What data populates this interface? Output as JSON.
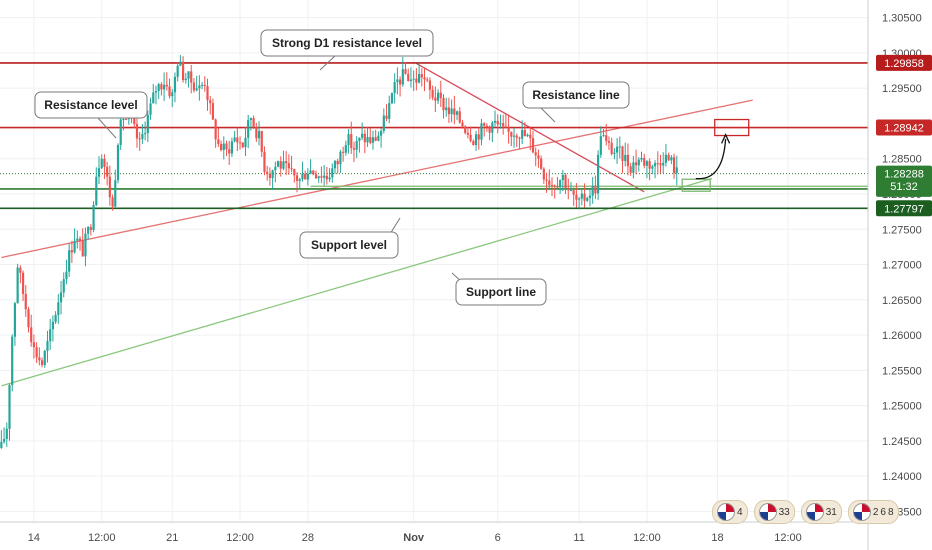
{
  "chart_data": {
    "type": "candlestick",
    "ylim": [
      1.2335,
      1.3075
    ],
    "y_ticks": [
      "1.30500",
      "1.30000",
      "1.29500",
      "1.28500",
      "1.28000",
      "1.27500",
      "1.27000",
      "1.26500",
      "1.26000",
      "1.25500",
      "1.25000",
      "1.24500",
      "1.24000",
      "1.23500"
    ],
    "y_tick_values": [
      1.305,
      1.3,
      1.295,
      1.285,
      1.28,
      1.275,
      1.27,
      1.265,
      1.26,
      1.255,
      1.25,
      1.245,
      1.24,
      1.235
    ],
    "x_ticks": [
      {
        "label": "14",
        "bar": 12,
        "bold": false
      },
      {
        "label": "12:00",
        "bar": 37,
        "bold": false
      },
      {
        "label": "21",
        "bar": 63,
        "bold": false
      },
      {
        "label": "12:00",
        "bar": 88,
        "bold": false
      },
      {
        "label": "28",
        "bar": 113,
        "bold": false
      },
      {
        "label": "Nov",
        "bar": 152,
        "bold": true
      },
      {
        "label": "6",
        "bar": 183,
        "bold": false
      },
      {
        "label": "11",
        "bar": 213,
        "bold": false
      },
      {
        "label": "12:00",
        "bar": 238,
        "bold": false
      },
      {
        "label": "18",
        "bar": 264,
        "bold": false
      },
      {
        "label": "12:00",
        "bar": 290,
        "bold": false
      }
    ],
    "bars_total": 320,
    "close_path": [
      [
        0,
        1.244
      ],
      [
        2,
        1.247
      ],
      [
        4,
        1.26
      ],
      [
        6,
        1.27
      ],
      [
        9,
        1.264
      ],
      [
        12,
        1.258
      ],
      [
        15,
        1.256
      ],
      [
        18,
        1.26
      ],
      [
        21,
        1.265
      ],
      [
        24,
        1.27
      ],
      [
        27,
        1.274
      ],
      [
        30,
        1.272
      ],
      [
        33,
        1.276
      ],
      [
        35,
        1.283
      ],
      [
        37,
        1.286
      ],
      [
        39,
        1.282
      ],
      [
        41,
        1.278
      ],
      [
        43,
        1.288
      ],
      [
        45,
        1.291
      ],
      [
        48,
        1.29
      ],
      [
        51,
        1.287
      ],
      [
        54,
        1.291
      ],
      [
        57,
        1.295
      ],
      [
        60,
        1.296
      ],
      [
        63,
        1.294
      ],
      [
        65,
        1.299
      ],
      [
        67,
        1.297
      ],
      [
        70,
        1.296
      ],
      [
        73,
        1.295
      ],
      [
        75,
        1.296
      ],
      [
        78,
        1.29
      ],
      [
        80,
        1.287
      ],
      [
        83,
        1.286
      ],
      [
        86,
        1.288
      ],
      [
        89,
        1.287
      ],
      [
        92,
        1.291
      ],
      [
        95,
        1.288
      ],
      [
        97,
        1.284
      ],
      [
        99,
        1.283
      ],
      [
        102,
        1.2845
      ],
      [
        106,
        1.283
      ],
      [
        110,
        1.282
      ],
      [
        113,
        1.2835
      ],
      [
        117,
        1.283
      ],
      [
        120,
        1.2825
      ],
      [
        124,
        1.2845
      ],
      [
        127,
        1.288
      ],
      [
        130,
        1.2865
      ],
      [
        133,
        1.288
      ],
      [
        137,
        1.2875
      ],
      [
        140,
        1.289
      ],
      [
        143,
        1.2925
      ],
      [
        146,
        1.296
      ],
      [
        149,
        1.297
      ],
      [
        152,
        1.296
      ],
      [
        155,
        1.297
      ],
      [
        158,
        1.2945
      ],
      [
        162,
        1.293
      ],
      [
        166,
        1.2915
      ],
      [
        170,
        1.29
      ],
      [
        174,
        1.288
      ],
      [
        178,
        1.2895
      ],
      [
        182,
        1.29
      ],
      [
        186,
        1.2885
      ],
      [
        190,
        1.289
      ],
      [
        194,
        1.288
      ],
      [
        197,
        1.286
      ],
      [
        200,
        1.283
      ],
      [
        203,
        1.2815
      ],
      [
        207,
        1.2825
      ],
      [
        210,
        1.28
      ],
      [
        213,
        1.2785
      ],
      [
        216,
        1.28
      ],
      [
        219,
        1.281
      ],
      [
        221,
        1.289
      ],
      [
        223,
        1.287
      ],
      [
        226,
        1.286
      ],
      [
        229,
        1.2855
      ],
      [
        232,
        1.284
      ],
      [
        235,
        1.285
      ],
      [
        238,
        1.2845
      ],
      [
        241,
        1.284
      ],
      [
        244,
        1.2855
      ],
      [
        247,
        1.2845
      ],
      [
        249,
        1.283
      ]
    ],
    "levels": [
      {
        "value": 1.29858,
        "label": "1.29858",
        "color": "#b71c1c"
      },
      {
        "value": 1.28942,
        "label": "1.28942",
        "color": "#c62828"
      },
      {
        "value": 1.28288,
        "label": "1.28288",
        "color": "#2e7d32"
      },
      {
        "value": 1.28072,
        "label": "1.28072",
        "color": "#2e7d32"
      },
      {
        "value": 1.27797,
        "label": "1.27797",
        "color": "#1b5e20"
      }
    ],
    "countdown_badge": "51:32",
    "support_zone": 1.2811,
    "rising_resistance_line": {
      "from": [
        0,
        1.271
      ],
      "to": [
        277,
        1.2933
      ]
    },
    "falling_resistance_line": {
      "from": [
        153,
        1.2985
      ],
      "to": [
        237,
        1.2803
      ]
    },
    "support_line": {
      "from": [
        0,
        1.2528
      ],
      "to": [
        262,
        1.2822
      ]
    },
    "annotations": [
      {
        "text": "Strong D1 resistance level"
      },
      {
        "text": "Resistance level"
      },
      {
        "text": "Resistance line"
      },
      {
        "text": "Support level"
      },
      {
        "text": "Support line"
      }
    ]
  },
  "events": [
    {
      "count": "4"
    },
    {
      "count": "33"
    },
    {
      "count": "31"
    },
    {
      "count": "2"
    },
    {
      "count": "6"
    },
    {
      "count": "8"
    }
  ]
}
